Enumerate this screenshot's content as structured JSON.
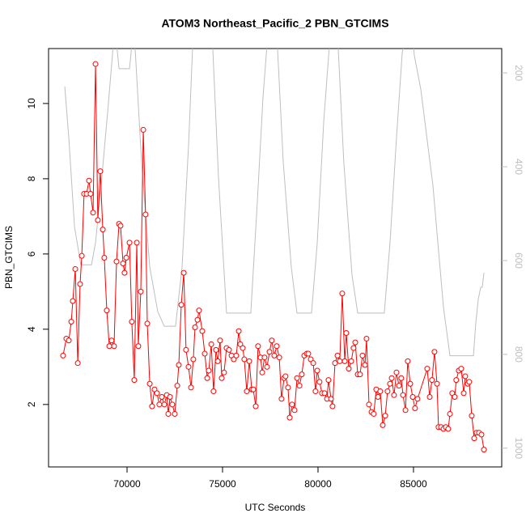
{
  "chart_data": {
    "type": "line",
    "title": "ATOM3 Northeast_Pacific_2 PBN_GTCIMS",
    "xlabel": "UTC Seconds",
    "ylabel": "PBN_GTCIMS",
    "xlim": [
      65890,
      89620
    ],
    "xticks": [
      70000,
      75000,
      80000,
      85000
    ],
    "ylim": [
      0.34,
      11.46
    ],
    "yticks": [
      2,
      4,
      6,
      8,
      10
    ],
    "y2lim": [
      1040,
      148
    ],
    "y2ticks": [
      200,
      400,
      600,
      800,
      1000
    ],
    "grid": false,
    "series": [
      {
        "color": "#ff0000",
        "markers": true,
        "x": [
          66650,
          66820,
          66950,
          67080,
          67160,
          67290,
          67420,
          67540,
          67630,
          67750,
          67880,
          68010,
          68090,
          68220,
          68350,
          68470,
          68600,
          68730,
          68810,
          68940,
          69070,
          69190,
          69320,
          69450,
          69580,
          69660,
          69790,
          69870,
          69960,
          70130,
          70250,
          70380,
          70510,
          70590,
          70720,
          70850,
          70970,
          71060,
          71190,
          71310,
          71440,
          71570,
          71690,
          71820,
          71950,
          72080,
          72160,
          72250,
          72370,
          72500,
          72630,
          72710,
          72840,
          72970,
          73090,
          73220,
          73350,
          73470,
          73560,
          73690,
          73770,
          73940,
          74070,
          74200,
          74280,
          74410,
          74530,
          74660,
          74750,
          74870,
          74960,
          75080,
          75210,
          75340,
          75470,
          75590,
          75720,
          75850,
          75930,
          76060,
          76140,
          76270,
          76400,
          76530,
          76610,
          76740,
          76860,
          76990,
          77080,
          77200,
          77330,
          77460,
          77580,
          77710,
          77840,
          77970,
          78090,
          78220,
          78300,
          78430,
          78520,
          78640,
          78770,
          78900,
          79030,
          79150,
          79280,
          79410,
          79490,
          79620,
          79750,
          79870,
          79960,
          80080,
          80210,
          80340,
          80470,
          80550,
          80680,
          80760,
          80890,
          81020,
          81140,
          81270,
          81400,
          81480,
          81610,
          81740,
          81860,
          81950,
          82080,
          82200,
          82330,
          82460,
          82540,
          82670,
          82800,
          82920,
          83050,
          83140,
          83260,
          83390,
          83520,
          83640,
          83770,
          83860,
          83980,
          84110,
          84240,
          84360,
          84450,
          84580,
          84700,
          84830,
          84960,
          85080,
          85210,
          85720,
          85850,
          85970,
          86100,
          86230,
          86310,
          86440,
          86570,
          86690,
          86820,
          86910,
          87030,
          87160,
          87240,
          87370,
          87500,
          87630,
          87710,
          87840,
          87920,
          88050,
          88180,
          88300,
          88430,
          88560,
          88690
        ],
        "values": [
          3.3,
          3.75,
          3.7,
          4.2,
          4.75,
          5.6,
          3.1,
          5.2,
          5.95,
          7.6,
          7.6,
          7.95,
          7.6,
          7.1,
          11.05,
          6.9,
          8.2,
          6.65,
          5.9,
          4.5,
          3.55,
          3.7,
          3.55,
          5.8,
          6.8,
          6.75,
          5.75,
          5.5,
          5.9,
          6.3,
          4.2,
          2.65,
          6.3,
          3.55,
          5.0,
          9.3,
          7.05,
          4.15,
          2.55,
          1.95,
          2.4,
          2.3,
          2.0,
          2.2,
          2.0,
          2.25,
          1.75,
          2.2,
          2.0,
          1.75,
          2.5,
          3.05,
          4.65,
          5.5,
          3.45,
          3.0,
          2.45,
          3.2,
          4.05,
          4.25,
          4.5,
          3.95,
          3.35,
          2.7,
          2.9,
          3.6,
          2.35,
          3.45,
          3.15,
          3.7,
          2.7,
          2.85,
          3.5,
          3.45,
          3.3,
          3.2,
          3.3,
          3.95,
          3.6,
          3.5,
          3.2,
          2.35,
          3.15,
          2.4,
          2.4,
          1.95,
          3.55,
          3.25,
          2.85,
          3.25,
          3.0,
          3.4,
          3.7,
          3.3,
          3.55,
          3.25,
          2.15,
          2.7,
          2.75,
          2.45,
          1.65,
          2.0,
          1.85,
          2.7,
          2.5,
          2.8,
          3.3,
          3.35,
          3.35,
          3.2,
          3.1,
          2.35,
          2.9,
          2.6,
          2.3,
          2.3,
          2.15,
          2.65,
          2.15,
          1.95,
          3.1,
          3.3,
          3.15,
          4.95,
          3.15,
          3.9,
          2.95,
          3.15,
          3.5,
          3.65,
          2.8,
          2.8,
          3.3,
          3.05,
          3.75,
          2.0,
          1.8,
          1.75,
          2.4,
          2.2,
          2.35,
          1.45,
          1.7,
          2.35,
          2.55,
          2.7,
          2.25,
          2.85,
          2.5,
          2.7,
          2.25,
          1.85,
          3.15,
          2.55,
          2.2,
          1.9,
          2.15,
          2.95,
          2.2,
          2.65,
          3.4,
          2.55,
          1.4,
          1.4,
          1.35,
          1.4,
          1.35,
          1.75,
          2.3,
          2.2,
          2.65,
          2.9,
          2.95,
          2.3,
          2.75,
          2.55,
          2.6,
          1.7,
          1.1,
          1.25,
          1.25,
          1.2,
          0.8
        ]
      },
      {
        "color": "#bebebe",
        "axis": "y2",
        "markers": false,
        "x": [
          66740,
          66950,
          67250,
          67580,
          68140,
          68350,
          68640,
          68980,
          69280,
          69410,
          69580,
          70130,
          70300,
          70420,
          70760,
          71190,
          71610,
          71950,
          72540,
          72880,
          73220,
          73430,
          73730,
          74280,
          74490,
          74790,
          75210,
          76480,
          76820,
          77120,
          77330,
          77630,
          77880,
          78180,
          78600,
          78900,
          79660,
          79960,
          80300,
          80590,
          80850,
          81060,
          81350,
          81780,
          82080,
          83470,
          83770,
          84110,
          84410,
          84620,
          84960,
          85040,
          85380,
          86020,
          86570,
          86910,
          88140,
          88260,
          88390,
          88520,
          88600,
          88690
        ],
        "values": [
          229,
          338,
          528,
          609,
          609,
          562,
          441,
          286,
          140,
          120,
          191,
          191,
          120,
          145,
          390,
          614,
          709,
          740,
          740,
          614,
          355,
          148,
          120,
          120,
          148,
          424,
          712,
          712,
          476,
          252,
          140,
          120,
          148,
          390,
          614,
          712,
          712,
          562,
          303,
          145,
          120,
          148,
          390,
          631,
          712,
          712,
          562,
          338,
          157,
          120,
          120,
          162,
          234,
          441,
          700,
          803,
          803,
          734,
          683,
          657,
          657,
          626
        ]
      }
    ]
  }
}
